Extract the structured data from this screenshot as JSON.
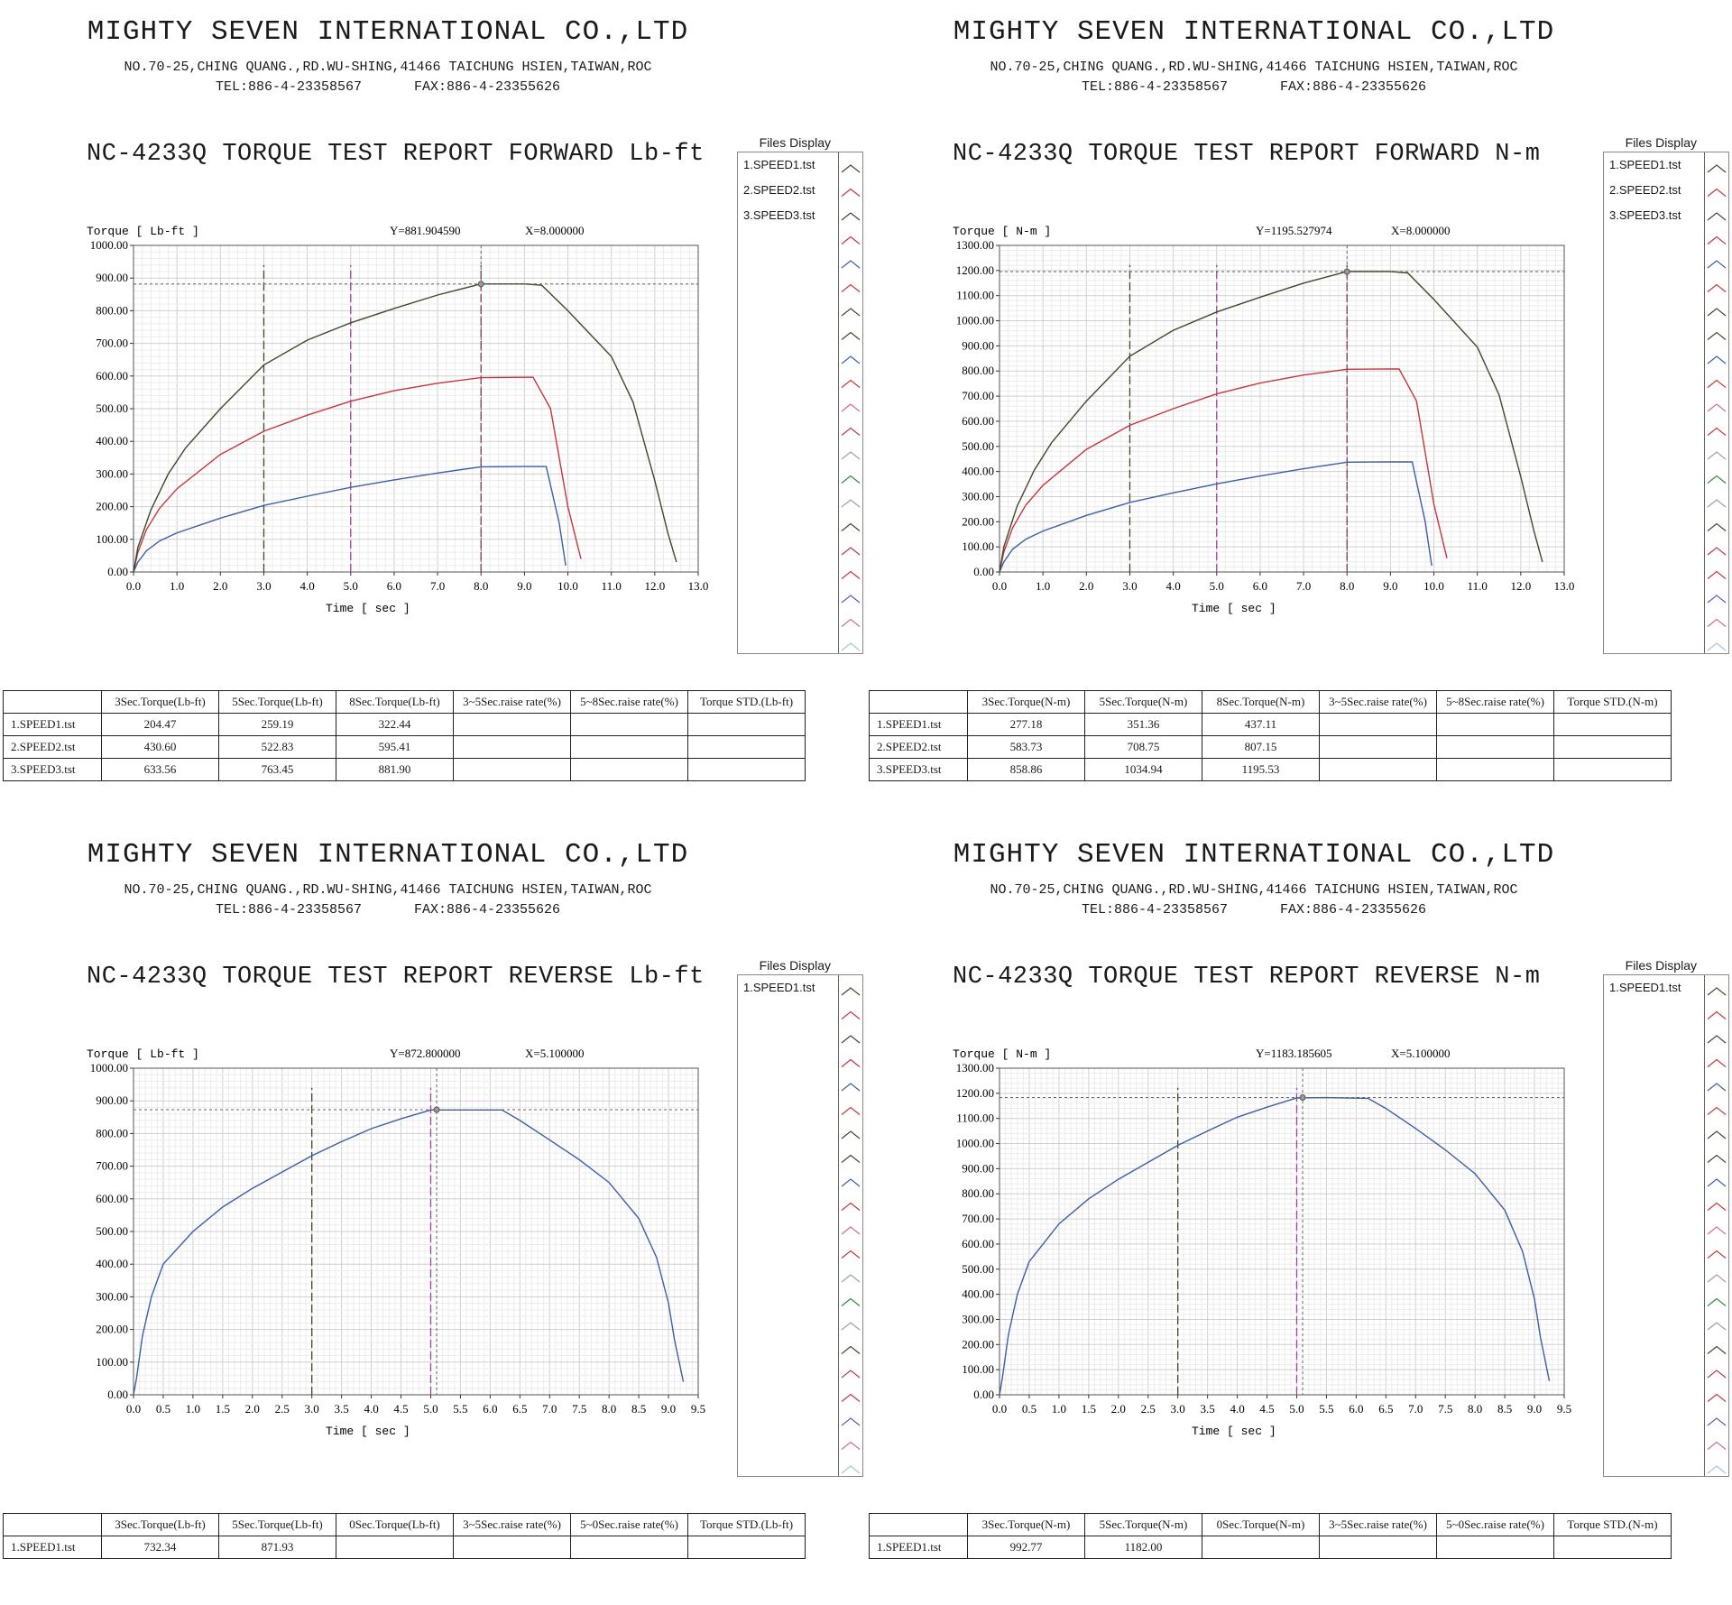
{
  "company": {
    "name": "MIGHTY SEVEN INTERNATIONAL CO.,LTD",
    "address": "NO.70-25,CHING QUANG.,RD.WU-SHING,41466 TAICHUNG HSIEN,TAIWAN,ROC",
    "tel": "TEL:886-4-23358567",
    "fax": "FAX:886-4-23355626"
  },
  "files_display_title": "Files Display",
  "x_axis_label": "Time [ sec ]",
  "panels": [
    {
      "title": "NC-4233Q TORQUE TEST REPORT FORWARD Lb-ft",
      "y_label": "Torque [ Lb-ft ]",
      "cursor_y": "Y=881.904590",
      "cursor_x": "X=8.000000",
      "files": [
        "1.SPEED1.tst",
        "2.SPEED2.tst",
        "3.SPEED3.tst"
      ],
      "table": {
        "headers": [
          "3Sec.Torque(Lb-ft)",
          "5Sec.Torque(Lb-ft)",
          "8Sec.Torque(Lb-ft)",
          "3~5Sec.raise rate(%)",
          "5~8Sec.raise rate(%)",
          "Torque STD.(Lb-ft)"
        ],
        "rows": [
          {
            "label": "1.SPEED1.tst",
            "values": [
              "204.47",
              "259.19",
              "322.44",
              "",
              "",
              ""
            ]
          },
          {
            "label": "2.SPEED2.tst",
            "values": [
              "430.60",
              "522.83",
              "595.41",
              "",
              "",
              ""
            ]
          },
          {
            "label": "3.SPEED3.tst",
            "values": [
              "633.56",
              "763.45",
              "881.90",
              "",
              "",
              ""
            ]
          }
        ]
      }
    },
    {
      "title": "NC-4233Q TORQUE TEST REPORT FORWARD N-m",
      "y_label": "Torque [ N-m ]",
      "cursor_y": "Y=1195.527974",
      "cursor_x": "X=8.000000",
      "files": [
        "1.SPEED1.tst",
        "2.SPEED2.tst",
        "3.SPEED3.tst"
      ],
      "table": {
        "headers": [
          "3Sec.Torque(N-m)",
          "5Sec.Torque(N-m)",
          "8Sec.Torque(N-m)",
          "3~5Sec.raise rate(%)",
          "5~8Sec.raise rate(%)",
          "Torque STD.(N-m)"
        ],
        "rows": [
          {
            "label": "1.SPEED1.tst",
            "values": [
              "277.18",
              "351.36",
              "437.11",
              "",
              "",
              ""
            ]
          },
          {
            "label": "2.SPEED2.tst",
            "values": [
              "583.73",
              "708.75",
              "807.15",
              "",
              "",
              ""
            ]
          },
          {
            "label": "3.SPEED3.tst",
            "values": [
              "858.86",
              "1034.94",
              "1195.53",
              "",
              "",
              ""
            ]
          }
        ]
      }
    },
    {
      "title": "NC-4233Q TORQUE TEST REPORT REVERSE Lb-ft",
      "y_label": "Torque [ Lb-ft ]",
      "cursor_y": "Y=872.800000",
      "cursor_x": "X=5.100000",
      "files": [
        "1.SPEED1.tst"
      ],
      "table": {
        "headers": [
          "3Sec.Torque(Lb-ft)",
          "5Sec.Torque(Lb-ft)",
          "0Sec.Torque(Lb-ft)",
          "3~5Sec.raise rate(%)",
          "5~0Sec.raise rate(%)",
          "Torque STD.(Lb-ft)"
        ],
        "rows": [
          {
            "label": "1.SPEED1.tst",
            "values": [
              "732.34",
              "871.93",
              "",
              "",
              "",
              ""
            ]
          }
        ]
      }
    },
    {
      "title": "NC-4233Q TORQUE TEST REPORT REVERSE N-m",
      "y_label": "Torque [ N-m ]",
      "cursor_y": "Y=1183.185605",
      "cursor_x": "X=5.100000",
      "files": [
        "1.SPEED1.tst"
      ],
      "table": {
        "headers": [
          "3Sec.Torque(N-m)",
          "5Sec.Torque(N-m)",
          "0Sec.Torque(N-m)",
          "3~5Sec.raise rate(%)",
          "5~0Sec.raise rate(%)",
          "Torque STD.(N-m)"
        ],
        "rows": [
          {
            "label": "1.SPEED1.tst",
            "values": [
              "992.77",
              "1182.00",
              "",
              "",
              "",
              ""
            ]
          }
        ]
      }
    }
  ],
  "chart_data": [
    {
      "type": "line",
      "title": "NC-4233Q TORQUE TEST REPORT FORWARD Lb-ft",
      "xlabel": "Time [ sec ]",
      "ylabel": "Torque [ Lb-ft ]",
      "xlim": [
        0,
        13
      ],
      "ylim": [
        0,
        1000
      ],
      "x_ticks": [
        "0.0",
        "1.0",
        "2.0",
        "3.0",
        "4.0",
        "5.0",
        "6.0",
        "7.0",
        "8.0",
        "9.0",
        "10.0",
        "11.0",
        "12.0",
        "13.0"
      ],
      "y_ticks": [
        "0.00",
        "100.00",
        "200.00",
        "300.00",
        "400.00",
        "500.00",
        "600.00",
        "700.00",
        "800.00",
        "900.00",
        "1000.00"
      ],
      "markers": [
        3,
        5,
        8
      ],
      "cursor": {
        "x": 8.0,
        "y": 881.9
      },
      "series": [
        {
          "name": "1.SPEED1.tst",
          "color": "#3a5fa8",
          "points": [
            [
              0,
              0
            ],
            [
              0.1,
              30
            ],
            [
              0.3,
              65
            ],
            [
              0.6,
              95
            ],
            [
              1,
              120
            ],
            [
              2,
              165
            ],
            [
              3,
              204
            ],
            [
              4,
              232
            ],
            [
              5,
              259
            ],
            [
              6,
              282
            ],
            [
              7,
              303
            ],
            [
              8,
              322
            ],
            [
              9,
              323
            ],
            [
              9.5,
              323
            ],
            [
              9.8,
              150
            ],
            [
              9.95,
              20
            ]
          ]
        },
        {
          "name": "2.SPEED2.tst",
          "color": "#c8353f",
          "points": [
            [
              0,
              0
            ],
            [
              0.1,
              60
            ],
            [
              0.3,
              130
            ],
            [
              0.6,
              195
            ],
            [
              1,
              255
            ],
            [
              2,
              360
            ],
            [
              3,
              431
            ],
            [
              4,
              480
            ],
            [
              5,
              523
            ],
            [
              6,
              555
            ],
            [
              7,
              578
            ],
            [
              8,
              595
            ],
            [
              9,
              596
            ],
            [
              9.2,
              596
            ],
            [
              9.6,
              500
            ],
            [
              10,
              200
            ],
            [
              10.3,
              40
            ]
          ]
        },
        {
          "name": "3.SPEED3.tst",
          "color": "#3d4a2c",
          "points": [
            [
              0,
              0
            ],
            [
              0.1,
              75
            ],
            [
              0.4,
              190
            ],
            [
              0.8,
              300
            ],
            [
              1.2,
              380
            ],
            [
              2,
              500
            ],
            [
              3,
              634
            ],
            [
              4,
              710
            ],
            [
              5,
              763
            ],
            [
              6,
              807
            ],
            [
              7,
              848
            ],
            [
              8,
              882
            ],
            [
              9,
              882
            ],
            [
              9.4,
              878
            ],
            [
              10,
              800
            ],
            [
              11,
              660
            ],
            [
              11.5,
              520
            ],
            [
              12,
              280
            ],
            [
              12.3,
              120
            ],
            [
              12.5,
              30
            ]
          ]
        }
      ]
    },
    {
      "type": "line",
      "title": "NC-4233Q TORQUE TEST REPORT FORWARD N-m",
      "xlabel": "Time [ sec ]",
      "ylabel": "Torque [ N-m ]",
      "xlim": [
        0,
        13
      ],
      "ylim": [
        0,
        1300
      ],
      "x_ticks": [
        "0.0",
        "1.0",
        "2.0",
        "3.0",
        "4.0",
        "5.0",
        "6.0",
        "7.0",
        "8.0",
        "9.0",
        "10.0",
        "11.0",
        "12.0",
        "13.0"
      ],
      "y_ticks": [
        "0.00",
        "100.00",
        "200.00",
        "300.00",
        "400.00",
        "500.00",
        "600.00",
        "700.00",
        "800.00",
        "900.00",
        "1000.00",
        "1100.00",
        "1200.00",
        "1300.00"
      ],
      "markers": [
        3,
        5,
        8
      ],
      "cursor": {
        "x": 8.0,
        "y": 1195.5
      },
      "series": [
        {
          "name": "1.SPEED1.tst",
          "color": "#3a5fa8",
          "points": [
            [
              0,
              0
            ],
            [
              0.1,
              40
            ],
            [
              0.3,
              90
            ],
            [
              0.6,
              130
            ],
            [
              1,
              163
            ],
            [
              2,
              225
            ],
            [
              3,
              277
            ],
            [
              4,
              315
            ],
            [
              5,
              351
            ],
            [
              6,
              382
            ],
            [
              7,
              411
            ],
            [
              8,
              437
            ],
            [
              9,
              438
            ],
            [
              9.5,
              438
            ],
            [
              9.8,
              200
            ],
            [
              9.95,
              25
            ]
          ]
        },
        {
          "name": "2.SPEED2.tst",
          "color": "#c8353f",
          "points": [
            [
              0,
              0
            ],
            [
              0.1,
              80
            ],
            [
              0.3,
              175
            ],
            [
              0.6,
              265
            ],
            [
              1,
              345
            ],
            [
              2,
              488
            ],
            [
              3,
              584
            ],
            [
              4,
              650
            ],
            [
              5,
              709
            ],
            [
              6,
              752
            ],
            [
              7,
              784
            ],
            [
              8,
              807
            ],
            [
              9,
              808
            ],
            [
              9.2,
              808
            ],
            [
              9.6,
              680
            ],
            [
              10,
              270
            ],
            [
              10.3,
              55
            ]
          ]
        },
        {
          "name": "3.SPEED3.tst",
          "color": "#3d4a2c",
          "points": [
            [
              0,
              0
            ],
            [
              0.1,
              100
            ],
            [
              0.4,
              260
            ],
            [
              0.8,
              405
            ],
            [
              1.2,
              515
            ],
            [
              2,
              680
            ],
            [
              3,
              859
            ],
            [
              4,
              962
            ],
            [
              5,
              1035
            ],
            [
              6,
              1094
            ],
            [
              7,
              1150
            ],
            [
              8,
              1196
            ],
            [
              9,
              1196
            ],
            [
              9.4,
              1190
            ],
            [
              10,
              1085
            ],
            [
              11,
              895
            ],
            [
              11.5,
              705
            ],
            [
              12,
              380
            ],
            [
              12.3,
              165
            ],
            [
              12.5,
              40
            ]
          ]
        }
      ]
    },
    {
      "type": "line",
      "title": "NC-4233Q TORQUE TEST REPORT REVERSE Lb-ft",
      "xlabel": "Time [ sec ]",
      "ylabel": "Torque [ Lb-ft ]",
      "xlim": [
        0,
        9.5
      ],
      "ylim": [
        0,
        1000
      ],
      "x_ticks": [
        "0.0",
        "0.5",
        "1.0",
        "1.5",
        "2.0",
        "2.5",
        "3.0",
        "3.5",
        "4.0",
        "4.5",
        "5.0",
        "5.5",
        "6.0",
        "6.5",
        "7.0",
        "7.5",
        "8.0",
        "8.5",
        "9.0",
        "9.5"
      ],
      "y_ticks": [
        "0.00",
        "100.00",
        "200.00",
        "300.00",
        "400.00",
        "500.00",
        "600.00",
        "700.00",
        "800.00",
        "900.00",
        "1000.00"
      ],
      "markers": [
        3,
        5
      ],
      "cursor": {
        "x": 5.1,
        "y": 872.8
      },
      "series": [
        {
          "name": "1.SPEED1.tst",
          "color": "#3a5fa8",
          "points": [
            [
              0,
              0
            ],
            [
              0.05,
              50
            ],
            [
              0.15,
              180
            ],
            [
              0.3,
              300
            ],
            [
              0.5,
              400
            ],
            [
              1,
              500
            ],
            [
              1.5,
              575
            ],
            [
              2,
              632
            ],
            [
              2.5,
              682
            ],
            [
              3,
              732
            ],
            [
              3.5,
              775
            ],
            [
              4,
              815
            ],
            [
              4.5,
              845
            ],
            [
              5,
              872
            ],
            [
              5.5,
              872
            ],
            [
              6.2,
              872
            ],
            [
              6.5,
              840
            ],
            [
              7,
              780
            ],
            [
              7.5,
              720
            ],
            [
              8,
              650
            ],
            [
              8.5,
              540
            ],
            [
              8.8,
              420
            ],
            [
              9,
              280
            ],
            [
              9.1,
              170
            ],
            [
              9.25,
              40
            ]
          ]
        }
      ]
    },
    {
      "type": "line",
      "title": "NC-4233Q TORQUE TEST REPORT REVERSE N-m",
      "xlabel": "Time [ sec ]",
      "ylabel": "Torque [ N-m ]",
      "xlim": [
        0,
        9.5
      ],
      "ylim": [
        0,
        1300
      ],
      "x_ticks": [
        "0.0",
        "0.5",
        "1.0",
        "1.5",
        "2.0",
        "2.5",
        "3.0",
        "3.5",
        "4.0",
        "4.5",
        "5.0",
        "5.5",
        "6.0",
        "6.5",
        "7.0",
        "7.5",
        "8.0",
        "8.5",
        "9.0",
        "9.5"
      ],
      "y_ticks": [
        "0.00",
        "100.00",
        "200.00",
        "300.00",
        "400.00",
        "500.00",
        "600.00",
        "700.00",
        "800.00",
        "900.00",
        "1000.00",
        "1100.00",
        "1200.00",
        "1300.00"
      ],
      "markers": [
        3,
        5
      ],
      "cursor": {
        "x": 5.1,
        "y": 1183.2
      },
      "series": [
        {
          "name": "1.SPEED1.tst",
          "color": "#3a5fa8",
          "points": [
            [
              0,
              0
            ],
            [
              0.05,
              70
            ],
            [
              0.15,
              240
            ],
            [
              0.3,
              400
            ],
            [
              0.5,
              530
            ],
            [
              1,
              680
            ],
            [
              1.5,
              780
            ],
            [
              2,
              858
            ],
            [
              2.5,
              925
            ],
            [
              3,
              993
            ],
            [
              3.5,
              1050
            ],
            [
              4,
              1105
            ],
            [
              4.5,
              1145
            ],
            [
              5,
              1182
            ],
            [
              5.5,
              1183
            ],
            [
              6.2,
              1180
            ],
            [
              6.5,
              1140
            ],
            [
              7,
              1060
            ],
            [
              7.5,
              975
            ],
            [
              8,
              880
            ],
            [
              8.5,
              735
            ],
            [
              8.8,
              570
            ],
            [
              9,
              380
            ],
            [
              9.1,
              230
            ],
            [
              9.25,
              55
            ]
          ]
        }
      ]
    }
  ],
  "strip_colors": [
    "#3d4a2c",
    "#c8353f",
    "#3a5fa8",
    "#d86a8a",
    "#9aa0a6",
    "#2e8b3a",
    "#5b5fbf",
    "#9ec8dc"
  ]
}
